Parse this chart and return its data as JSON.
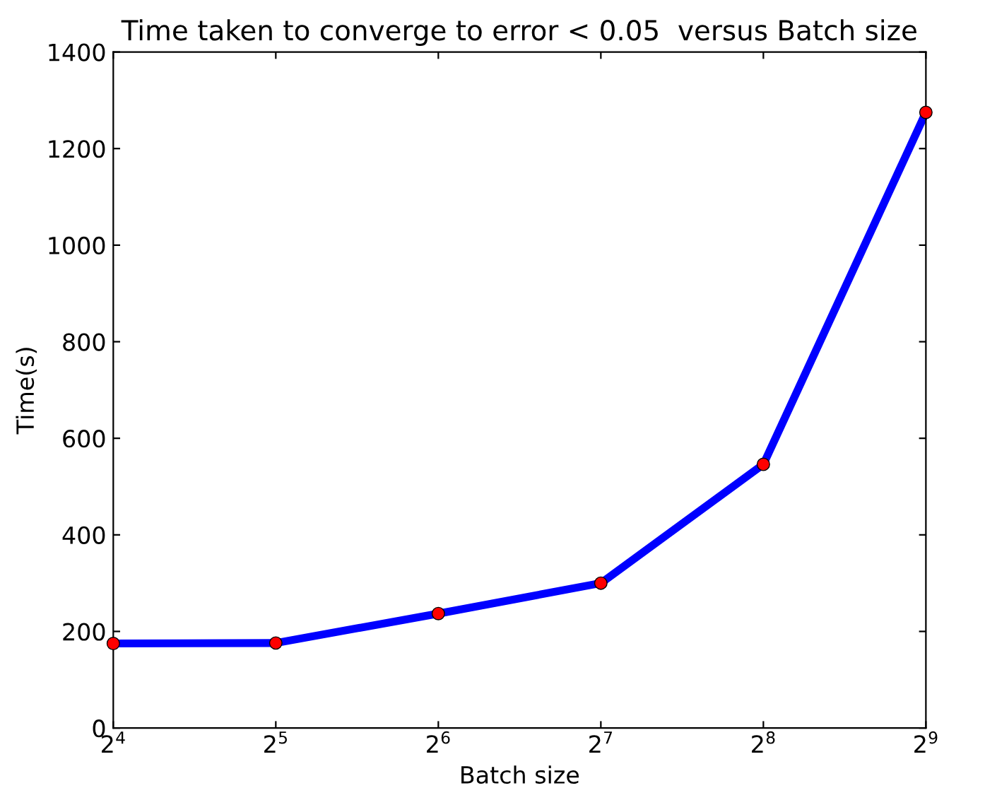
{
  "chart_data": {
    "type": "line",
    "title": "Time taken to converge to error < 0.05  versus Batch size",
    "xlabel": "Batch size",
    "ylabel": "Time(s)",
    "log": "x",
    "x": [
      16,
      32,
      64,
      128,
      256,
      512
    ],
    "series": [
      {
        "color": "#0000ff",
        "marker": "none",
        "values": [
          175,
          176,
          237,
          300,
          546,
          1275
        ]
      },
      {
        "type": "scatter",
        "color": "#ff0000",
        "marker": "circle",
        "values": [
          175,
          176,
          237,
          300,
          546,
          1275
        ]
      }
    ],
    "xlim": [
      16,
      512
    ],
    "ylim": [
      0,
      1400
    ],
    "xticks": [
      {
        "value": 16,
        "label": "2$^{4}$"
      },
      {
        "value": 32,
        "label": "2$^{5}$"
      },
      {
        "value": 64,
        "label": "2$^{6}$"
      },
      {
        "value": 128,
        "label": "2$^{7}$"
      },
      {
        "value": 256,
        "label": "2$^{8}$"
      },
      {
        "value": 512,
        "label": "2$^{9}$"
      }
    ],
    "yticks": [
      0,
      200,
      400,
      600,
      800,
      1000,
      1200,
      1400
    ],
    "grid": false
  }
}
